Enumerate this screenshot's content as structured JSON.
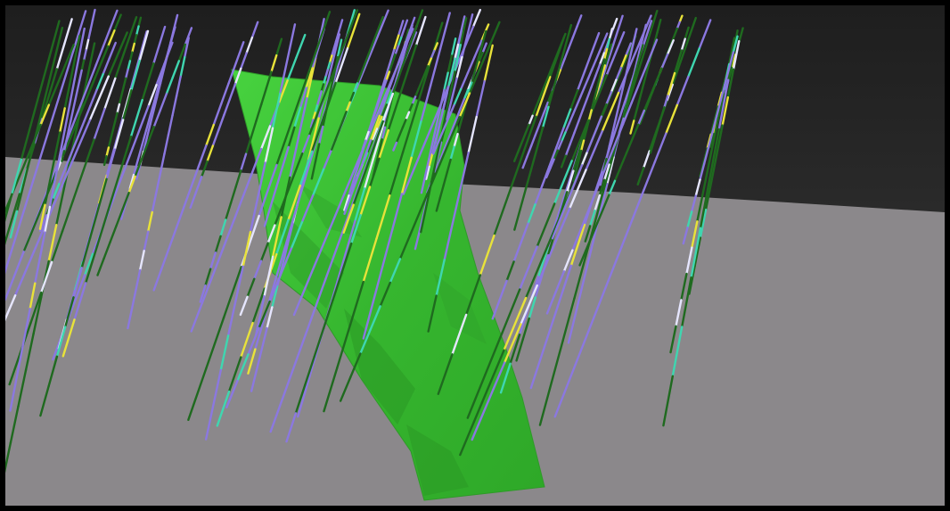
{
  "scene": {
    "description_visible_text": "",
    "colors": {
      "sky_dark": "#2a2a2a",
      "sky_mid": "#3a3a3a",
      "ground": "#8b888b",
      "orebody": "#3fc238",
      "orebody_shadow": "#2a9a24",
      "hole_purple": "#8b78e0",
      "hole_green": "#1f6a1f",
      "hole_yellow": "#e8e23a",
      "hole_cyan": "#3fd6b0",
      "hole_white": "#e6e6ff"
    }
  }
}
